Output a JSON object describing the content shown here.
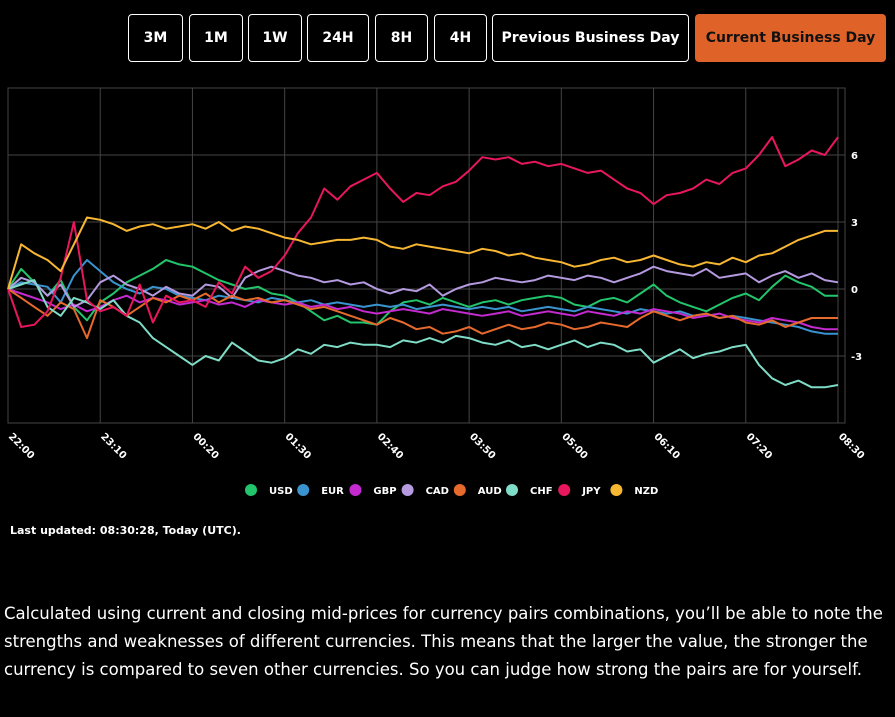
{
  "buttons": [
    {
      "label": "3M",
      "active": false
    },
    {
      "label": "1M",
      "active": false
    },
    {
      "label": "1W",
      "active": false
    },
    {
      "label": "24H",
      "active": false
    },
    {
      "label": "8H",
      "active": false
    },
    {
      "label": "4H",
      "active": false
    },
    {
      "label": "Previous Business Day",
      "active": false
    },
    {
      "label": "Current Business Day",
      "active": true
    }
  ],
  "chart_data": {
    "type": "line",
    "categories": [
      "22:00",
      null,
      null,
      null,
      null,
      null,
      null,
      "23:10",
      null,
      null,
      null,
      null,
      null,
      null,
      "00:20",
      null,
      null,
      null,
      null,
      null,
      null,
      "01:30",
      null,
      null,
      null,
      null,
      null,
      null,
      "02:40",
      null,
      null,
      null,
      null,
      null,
      null,
      "03:50",
      null,
      null,
      null,
      null,
      null,
      null,
      "05:00",
      null,
      null,
      null,
      null,
      null,
      null,
      "06:10",
      null,
      null,
      null,
      null,
      null,
      null,
      "07:20",
      null,
      null,
      null,
      null,
      null,
      null,
      "08:30"
    ],
    "ylim": [
      -6,
      9
    ],
    "yticks": [
      -3,
      0,
      3,
      6
    ],
    "grid": true,
    "series": [
      {
        "name": "USD",
        "color": "#22c56b",
        "values": [
          0,
          0.9,
          0.3,
          -0.3,
          0.4,
          -0.8,
          -1.4,
          -0.6,
          -0.2,
          0.3,
          0.6,
          0.9,
          1.3,
          1.1,
          1.0,
          0.7,
          0.4,
          0.2,
          0.0,
          0.1,
          -0.2,
          -0.3,
          -0.6,
          -1.0,
          -1.4,
          -1.2,
          -1.5,
          -1.5,
          -1.6,
          -1.0,
          -0.6,
          -0.5,
          -0.7,
          -0.4,
          -0.6,
          -0.8,
          -0.6,
          -0.5,
          -0.7,
          -0.5,
          -0.4,
          -0.3,
          -0.4,
          -0.7,
          -0.8,
          -0.5,
          -0.4,
          -0.6,
          -0.2,
          0.2,
          -0.3,
          -0.6,
          -0.8,
          -1.0,
          -0.7,
          -0.4,
          -0.2,
          -0.5,
          0.1,
          0.6,
          0.3,
          0.1,
          -0.3,
          -0.3
        ]
      },
      {
        "name": "EUR",
        "color": "#3a93cf",
        "values": [
          0,
          0.3,
          0.2,
          0.1,
          -0.6,
          0.6,
          1.3,
          0.8,
          0.3,
          0.0,
          -0.2,
          0.1,
          0.0,
          -0.3,
          -0.4,
          -0.5,
          -0.3,
          -0.4,
          -0.5,
          -0.6,
          -0.4,
          -0.5,
          -0.6,
          -0.5,
          -0.7,
          -0.6,
          -0.7,
          -0.8,
          -0.7,
          -0.8,
          -0.7,
          -0.9,
          -0.8,
          -0.7,
          -0.8,
          -0.9,
          -0.8,
          -0.9,
          -0.8,
          -1.0,
          -0.9,
          -0.8,
          -0.9,
          -1.0,
          -0.8,
          -0.9,
          -1.0,
          -1.1,
          -0.9,
          -1.0,
          -1.1,
          -1.0,
          -1.2,
          -1.1,
          -1.3,
          -1.2,
          -1.3,
          -1.4,
          -1.5,
          -1.6,
          -1.7,
          -1.9,
          -2.0,
          -2.0
        ]
      },
      {
        "name": "GBP",
        "color": "#c42ad0",
        "values": [
          0,
          -0.2,
          -0.4,
          -0.6,
          -0.9,
          -0.7,
          -1.0,
          -0.8,
          -0.5,
          -0.3,
          -0.6,
          -0.4,
          -0.5,
          -0.7,
          -0.6,
          -0.5,
          -0.7,
          -0.6,
          -0.8,
          -0.5,
          -0.6,
          -0.7,
          -0.6,
          -0.8,
          -0.7,
          -0.9,
          -0.8,
          -1.0,
          -1.1,
          -1.0,
          -0.9,
          -1.0,
          -1.1,
          -0.9,
          -1.0,
          -1.1,
          -1.2,
          -1.1,
          -1.0,
          -1.2,
          -1.1,
          -1.0,
          -1.1,
          -1.2,
          -1.0,
          -1.1,
          -1.2,
          -1.0,
          -1.1,
          -0.9,
          -1.0,
          -1.1,
          -1.3,
          -1.2,
          -1.1,
          -1.3,
          -1.4,
          -1.5,
          -1.3,
          -1.4,
          -1.5,
          -1.7,
          -1.8,
          -1.8
        ]
      },
      {
        "name": "CAD",
        "color": "#b59ae0",
        "values": [
          0,
          0.5,
          0.3,
          -0.3,
          0.2,
          -0.8,
          -0.5,
          0.3,
          0.6,
          0.2,
          0.0,
          -0.3,
          0.1,
          -0.2,
          -0.3,
          0.2,
          0.1,
          -0.4,
          0.5,
          0.8,
          1.0,
          0.8,
          0.6,
          0.5,
          0.3,
          0.4,
          0.2,
          0.3,
          0.0,
          -0.2,
          0.0,
          -0.1,
          0.2,
          -0.3,
          0.0,
          0.2,
          0.3,
          0.5,
          0.4,
          0.3,
          0.4,
          0.6,
          0.5,
          0.4,
          0.6,
          0.5,
          0.3,
          0.5,
          0.7,
          1.0,
          0.8,
          0.7,
          0.6,
          0.9,
          0.5,
          0.6,
          0.7,
          0.3,
          0.6,
          0.8,
          0.5,
          0.7,
          0.4,
          0.3
        ]
      },
      {
        "name": "AUD",
        "color": "#e66a2c",
        "values": [
          0,
          -0.4,
          -0.8,
          -1.2,
          -0.6,
          -0.9,
          -2.2,
          -0.5,
          -0.8,
          -1.2,
          -0.8,
          -0.4,
          -0.6,
          -0.3,
          -0.5,
          -0.2,
          -0.6,
          -0.3,
          -0.5,
          -0.4,
          -0.6,
          -0.5,
          -0.7,
          -0.9,
          -0.8,
          -1.0,
          -1.2,
          -1.4,
          -1.6,
          -1.3,
          -1.5,
          -1.8,
          -1.7,
          -2.0,
          -1.9,
          -1.7,
          -2.0,
          -1.8,
          -1.6,
          -1.8,
          -1.7,
          -1.5,
          -1.6,
          -1.8,
          -1.7,
          -1.5,
          -1.6,
          -1.7,
          -1.3,
          -1.0,
          -1.2,
          -1.4,
          -1.2,
          -1.1,
          -1.3,
          -1.2,
          -1.5,
          -1.6,
          -1.4,
          -1.7,
          -1.5,
          -1.3,
          -1.3,
          -1.3
        ]
      },
      {
        "name": "CHF",
        "color": "#7fdcc6",
        "values": [
          0,
          0.2,
          0.4,
          -0.8,
          -1.2,
          -0.4,
          -0.6,
          -0.9,
          -0.5,
          -1.2,
          -1.5,
          -2.2,
          -2.6,
          -3.0,
          -3.4,
          -3.0,
          -3.2,
          -2.4,
          -2.8,
          -3.2,
          -3.3,
          -3.1,
          -2.7,
          -2.9,
          -2.5,
          -2.6,
          -2.4,
          -2.5,
          -2.5,
          -2.6,
          -2.3,
          -2.4,
          -2.2,
          -2.4,
          -2.1,
          -2.2,
          -2.4,
          -2.5,
          -2.3,
          -2.6,
          -2.5,
          -2.7,
          -2.5,
          -2.3,
          -2.6,
          -2.4,
          -2.5,
          -2.8,
          -2.7,
          -3.3,
          -3.0,
          -2.7,
          -3.1,
          -2.9,
          -2.8,
          -2.6,
          -2.5,
          -3.4,
          -4.0,
          -4.3,
          -4.1,
          -4.4,
          -4.4,
          -4.3
        ]
      },
      {
        "name": "JPY",
        "color": "#e8175d",
        "values": [
          0,
          -1.7,
          -1.6,
          -1.0,
          0.5,
          3.0,
          -0.5,
          -1.0,
          -0.8,
          -1.2,
          0.2,
          -1.5,
          -0.3,
          -0.6,
          -0.5,
          -0.8,
          0.3,
          -0.2,
          1.0,
          0.5,
          0.8,
          1.5,
          2.5,
          3.2,
          4.5,
          4.0,
          4.6,
          4.9,
          5.2,
          4.5,
          3.9,
          4.3,
          4.2,
          4.6,
          4.8,
          5.3,
          5.9,
          5.8,
          5.9,
          5.6,
          5.7,
          5.5,
          5.6,
          5.4,
          5.2,
          5.3,
          4.9,
          4.5,
          4.3,
          3.8,
          4.2,
          4.3,
          4.5,
          4.9,
          4.7,
          5.2,
          5.4,
          6.0,
          6.8,
          5.5,
          5.8,
          6.2,
          6.0,
          6.8
        ]
      },
      {
        "name": "NZD",
        "color": "#f7b733",
        "values": [
          0,
          2.0,
          1.6,
          1.3,
          0.8,
          2.0,
          3.2,
          3.1,
          2.9,
          2.6,
          2.8,
          2.9,
          2.7,
          2.8,
          2.9,
          2.7,
          3.0,
          2.6,
          2.8,
          2.7,
          2.5,
          2.3,
          2.2,
          2.0,
          2.1,
          2.2,
          2.2,
          2.3,
          2.2,
          1.9,
          1.8,
          2.0,
          1.9,
          1.8,
          1.7,
          1.6,
          1.8,
          1.7,
          1.5,
          1.6,
          1.4,
          1.3,
          1.2,
          1.0,
          1.1,
          1.3,
          1.4,
          1.2,
          1.3,
          1.5,
          1.3,
          1.1,
          1.0,
          1.2,
          1.1,
          1.4,
          1.2,
          1.5,
          1.6,
          1.9,
          2.2,
          2.4,
          2.6,
          2.6
        ]
      }
    ]
  },
  "last_updated": "Last updated: 08:30:28, Today (UTC).",
  "description": "Calculated using current and closing mid-prices for currency pairs combinations, you’ll be able to note the strengths and weaknesses of different currencies. This means that the larger the value, the stronger the currency is compared to seven other currencies. So you can judge how strong the pairs are for yourself."
}
